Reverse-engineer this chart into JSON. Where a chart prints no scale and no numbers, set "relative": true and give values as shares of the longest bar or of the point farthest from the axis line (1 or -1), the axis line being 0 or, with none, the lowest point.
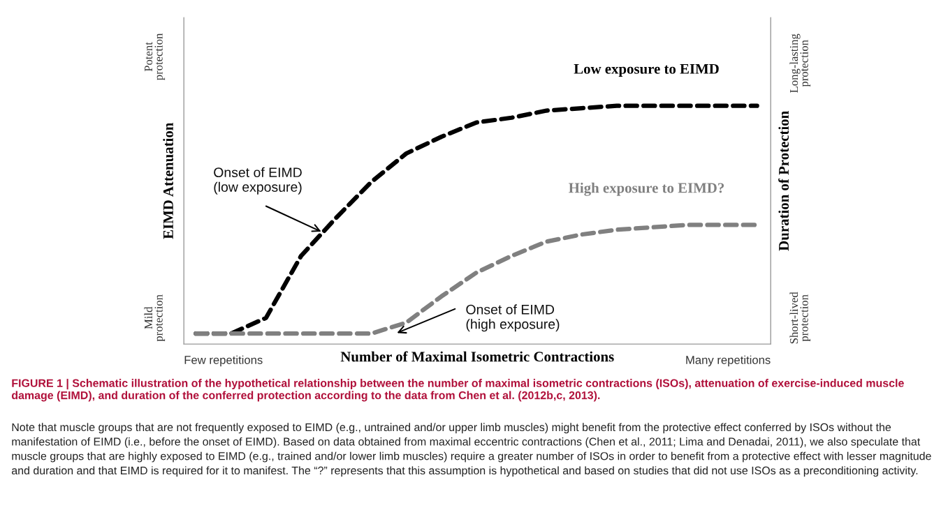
{
  "chart_data": {
    "type": "line",
    "relative": true,
    "title": "FIGURE 1 | Schematic illustration of the hypothetical relationship between the number of maximal isometric contractions (ISOs), attenuation of exercise-induced muscle damage (EIMD), and duration of the conferred protection according to the data from Chen et al. (2012b,c, 2013).",
    "xlabel": "Number of Maximal Isometric Contractions",
    "ylabel": "EIMD Attenuation",
    "y2label": "Duration of Protection",
    "categories": [
      null,
      null,
      null,
      null,
      null,
      null,
      null,
      null,
      null,
      null,
      null,
      null,
      null,
      null,
      null,
      null,
      null
    ],
    "series": [
      {
        "name": "Low exposure to EIMD",
        "color": "#000000",
        "values": [
          0.044,
          0.044,
          0.11,
          0.37,
          0.53,
          0.68,
          0.8,
          0.87,
          0.93,
          0.95,
          0.98,
          0.99,
          1.0,
          1.0,
          1.0,
          1.0,
          1.0
        ]
      },
      {
        "name": "High exposure to EIMD?",
        "color": "#808080",
        "values": [
          0.044,
          0.044,
          0.044,
          0.044,
          0.044,
          0.044,
          0.09,
          0.2,
          0.3,
          0.37,
          0.43,
          0.46,
          0.48,
          0.49,
          0.5,
          0.5,
          0.5
        ]
      }
    ],
    "line_style": "dashed",
    "marker": "none",
    "grid": false,
    "legend": false,
    "annotations": [
      "Potent\nprotection",
      "Mild\nprotection",
      "Long-lasting\nprotection",
      "Short-lived\nprotection",
      "Few repetitions",
      "Many repetitions",
      "Onset of EIMD\n(low exposure)",
      "Onset of EIMD\n(high exposure)",
      "Note that muscle groups that are not frequently exposed to EIMD (e.g., untrained and/or upper limb muscles) might benefit from the protective effect conferred by ISOs without the manifestation of EIMD (i.e., before the onset of EIMD). Based on data obtained from maximal eccentric contractions (Chen et al., 2011; Lima and Denadai, 2011), we also speculate that muscle groups that are highly exposed to EIMD (e.g., trained and/or lower limb muscles) require a greater number of ISOs in order to benefit from a protective effect with lesser magnitude and duration and that EIMD is required for it to manifest. The “?” represents that this assumption is hypothetical and based on studies that did not use ISOs as a preconditioning activity."
    ]
  }
}
